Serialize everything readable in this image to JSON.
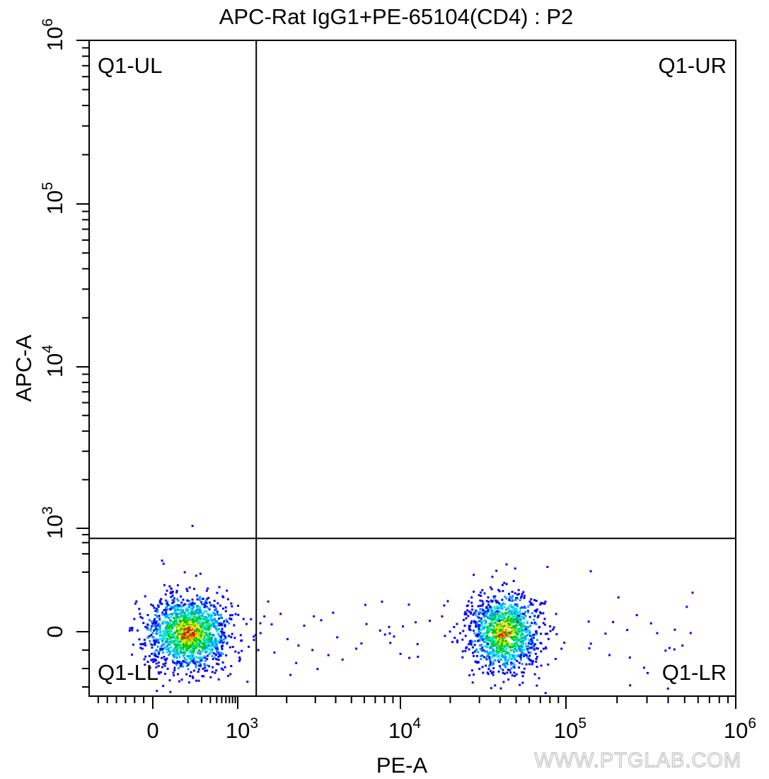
{
  "chart_data": {
    "type": "scatter",
    "title": "APC-Rat IgG1+PE-65104(CD4) : P2",
    "xlabel": "PE-A",
    "ylabel": "APC-A",
    "x_scale": "biexponential (logicle)",
    "y_scale": "biexponential (logicle)",
    "xlim": [
      -700,
      1000000
    ],
    "ylim": [
      -700,
      1000000
    ],
    "grid": false,
    "x_ticks": [
      {
        "value": 0,
        "base": "0",
        "exp": ""
      },
      {
        "value": 1000,
        "base": "10",
        "exp": "3"
      },
      {
        "value": 10000,
        "base": "10",
        "exp": "4"
      },
      {
        "value": 100000,
        "base": "10",
        "exp": "5"
      },
      {
        "value": 1000000,
        "base": "10",
        "exp": "6"
      }
    ],
    "y_ticks": [
      {
        "value": 0,
        "base": "0",
        "exp": ""
      },
      {
        "value": 1000,
        "base": "10",
        "exp": "3"
      },
      {
        "value": 10000,
        "base": "10",
        "exp": "4"
      },
      {
        "value": 100000,
        "base": "10",
        "exp": "5"
      },
      {
        "value": 1000000,
        "base": "10",
        "exp": "6"
      }
    ],
    "gates": {
      "x_threshold": 1300,
      "y_threshold": 700,
      "quadrants": [
        {
          "name": "Q1-UL",
          "position": "top-left"
        },
        {
          "name": "Q1-UR",
          "position": "top-right"
        },
        {
          "name": "Q1-LL",
          "position": "bottom-left"
        },
        {
          "name": "Q1-LR",
          "position": "bottom-right"
        }
      ]
    },
    "populations": [
      {
        "name": "CD4-negative cluster",
        "x_center": 100,
        "y_center": 0,
        "quadrant": "Q1-LL",
        "density": "high"
      },
      {
        "name": "CD4-positive cluster",
        "x_center": 42000,
        "y_center": 0,
        "quadrant": "Q1-LR",
        "density": "high"
      }
    ],
    "outlier_points": [
      {
        "x": 120,
        "y": 1050
      }
    ],
    "density_colors": [
      "#0000ff",
      "#0096ff",
      "#00e5e5",
      "#00c800",
      "#e5e500",
      "#ff7f00",
      "#ff0000"
    ]
  },
  "watermark": "WWW.PTGLAB.COM"
}
